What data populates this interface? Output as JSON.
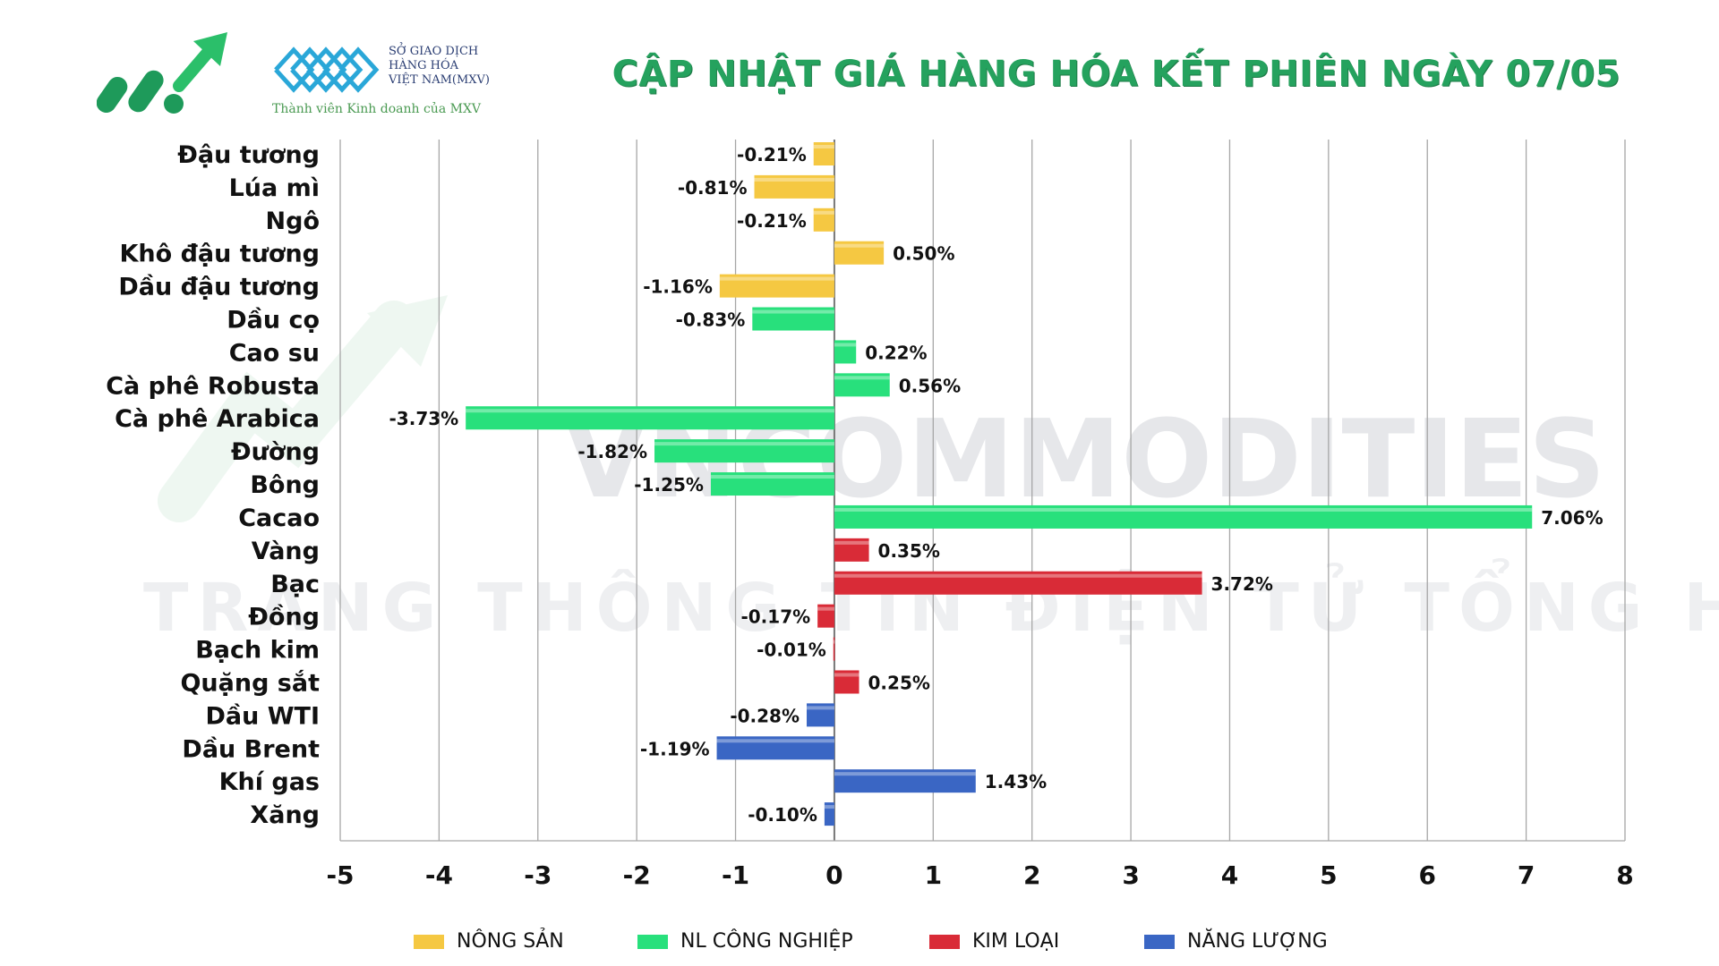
{
  "header": {
    "title": "CẬP NHẬT GIÁ HÀNG HÓA KẾT PHIÊN NGÀY 07/05",
    "mxv_lines": [
      "SỞ GIAO DỊCH",
      "HÀNG HÓA",
      "VIỆT NAM(MXV)"
    ],
    "mxv_member": "Thành viên Kinh doanh của MXV",
    "logo_color": "#1faa59",
    "mxv_color": "#2aa7d8"
  },
  "watermark": {
    "line1": "VNCOMMODITIES",
    "line2": "TRANG THÔNG TIN ĐIỆN TỬ TỔNG HỢP"
  },
  "chart_data": {
    "type": "bar",
    "orientation": "horizontal",
    "title": "",
    "xlabel": "",
    "ylabel": "",
    "xlim": [
      -5,
      8
    ],
    "xticks": [
      -5,
      -4,
      -3,
      -2,
      -1,
      0,
      1,
      2,
      3,
      4,
      5,
      6,
      7,
      8
    ],
    "grid": true,
    "legend_position": "bottom",
    "groups": [
      {
        "name": "NÔNG SẢN",
        "color": "#f5c842"
      },
      {
        "name": "NL CÔNG NGHIỆP",
        "color": "#28e07c"
      },
      {
        "name": "KIM LOẠI",
        "color": "#d92b37"
      },
      {
        "name": "NĂNG LƯỢNG",
        "color": "#3a66c4"
      }
    ],
    "items": [
      {
        "label": "Đậu tương",
        "value": -0.21,
        "text": "-0.21%",
        "group": 0
      },
      {
        "label": "Lúa mì",
        "value": -0.81,
        "text": "-0.81%",
        "group": 0
      },
      {
        "label": "Ngô",
        "value": -0.21,
        "text": "-0.21%",
        "group": 0
      },
      {
        "label": "Khô đậu tương",
        "value": 0.5,
        "text": "0.50%",
        "group": 0
      },
      {
        "label": "Dầu đậu tương",
        "value": -1.16,
        "text": "-1.16%",
        "group": 0
      },
      {
        "label": "Dầu cọ",
        "value": -0.83,
        "text": "-0.83%",
        "group": 1
      },
      {
        "label": "Cao su",
        "value": 0.22,
        "text": "0.22%",
        "group": 1
      },
      {
        "label": "Cà phê Robusta",
        "value": 0.56,
        "text": "0.56%",
        "group": 1
      },
      {
        "label": "Cà phê Arabica",
        "value": -3.73,
        "text": "-3.73%",
        "group": 1
      },
      {
        "label": "Đường",
        "value": -1.82,
        "text": "-1.82%",
        "group": 1
      },
      {
        "label": "Bông",
        "value": -1.25,
        "text": "-1.25%",
        "group": 1
      },
      {
        "label": "Cacao",
        "value": 7.06,
        "text": "7.06%",
        "group": 1
      },
      {
        "label": "Vàng",
        "value": 0.35,
        "text": "0.35%",
        "group": 2
      },
      {
        "label": "Bạc",
        "value": 3.72,
        "text": "3.72%",
        "group": 2
      },
      {
        "label": "Đồng",
        "value": -0.17,
        "text": "-0.17%",
        "group": 2
      },
      {
        "label": "Bạch kim",
        "value": -0.01,
        "text": "-0.01%",
        "group": 2
      },
      {
        "label": "Quặng sắt",
        "value": 0.25,
        "text": "0.25%",
        "group": 2
      },
      {
        "label": "Dầu WTI",
        "value": -0.28,
        "text": "-0.28%",
        "group": 3
      },
      {
        "label": "Dầu Brent",
        "value": -1.19,
        "text": "-1.19%",
        "group": 3
      },
      {
        "label": "Khí gas",
        "value": 1.43,
        "text": "1.43%",
        "group": 3
      },
      {
        "label": "Xăng",
        "value": -0.1,
        "text": "-0.10%",
        "group": 3
      }
    ]
  }
}
